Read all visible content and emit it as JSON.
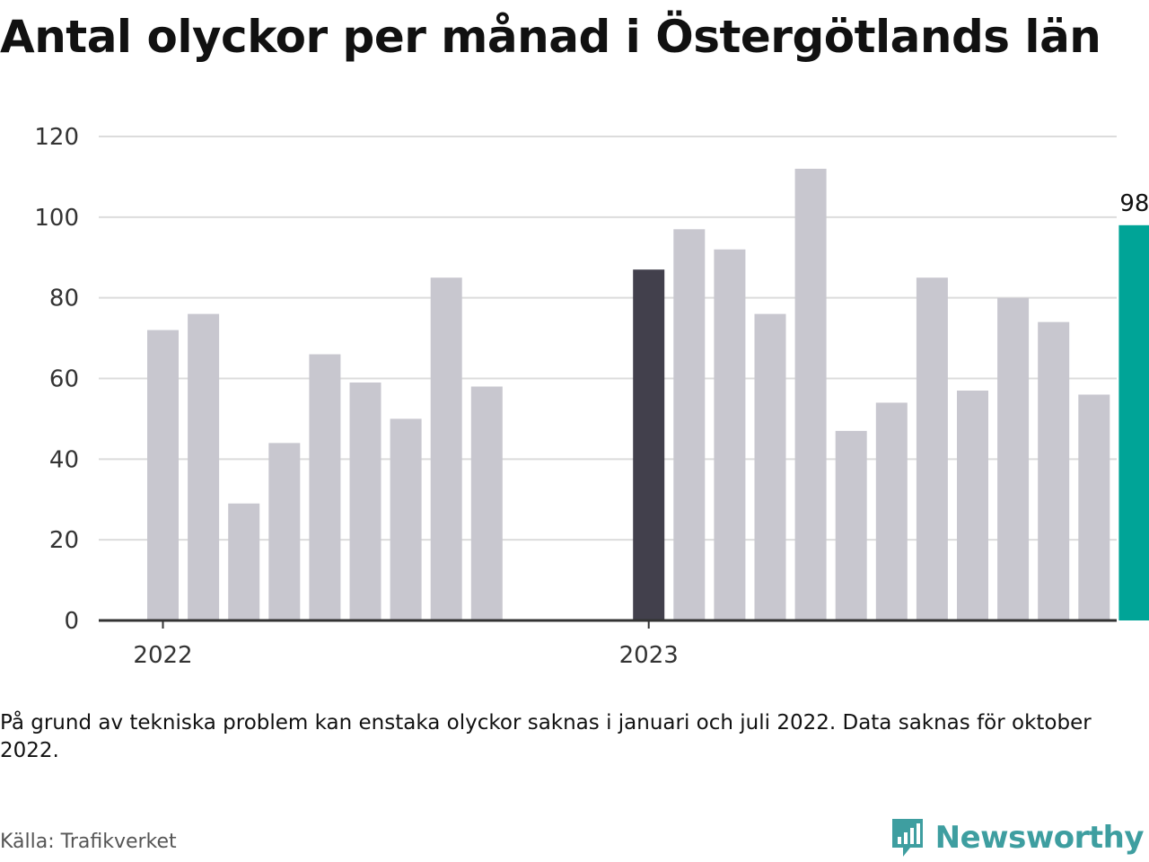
{
  "title": "Antal olyckor per månad i Östergötlands län",
  "note": "På grund av tekniska problem kan enstaka olyckor saknas i januari och juli 2022. Data saknas för oktober 2022.",
  "source": "Källa: Trafikverket",
  "brand": {
    "name": "Newsworthy",
    "icon": "newsworthy-logo-icon",
    "color": "#3e9ea0"
  },
  "chart_data": {
    "type": "bar",
    "ylim": [
      0,
      120
    ],
    "yticks": [
      0,
      20,
      40,
      60,
      80,
      100,
      120
    ],
    "grid": true,
    "x_tick_labels": [
      "2022",
      "2023"
    ],
    "colors": {
      "default": "#c8c7cf",
      "highlight_year_start": "#42404c",
      "latest": "#00a497"
    },
    "categories": [
      "2022-01",
      "2022-02",
      "2022-03",
      "2022-04",
      "2022-05",
      "2022-06",
      "2022-07",
      "2022-08",
      "2022-09",
      "2022-10",
      "2022-11",
      "2022-12",
      "2023-01",
      "2023-02",
      "2023-03",
      "2023-04",
      "2023-05",
      "2023-06",
      "2023-07",
      "2023-08",
      "2023-09",
      "2023-10",
      "2023-11",
      "2023-12",
      "2024-01"
    ],
    "values": [
      72,
      76,
      29,
      44,
      66,
      59,
      50,
      85,
      58,
      null,
      null,
      null,
      87,
      97,
      92,
      76,
      112,
      47,
      54,
      85,
      57,
      80,
      74,
      56,
      98
    ],
    "data_labels": [
      {
        "category": "2024-01",
        "text": "98"
      }
    ]
  }
}
